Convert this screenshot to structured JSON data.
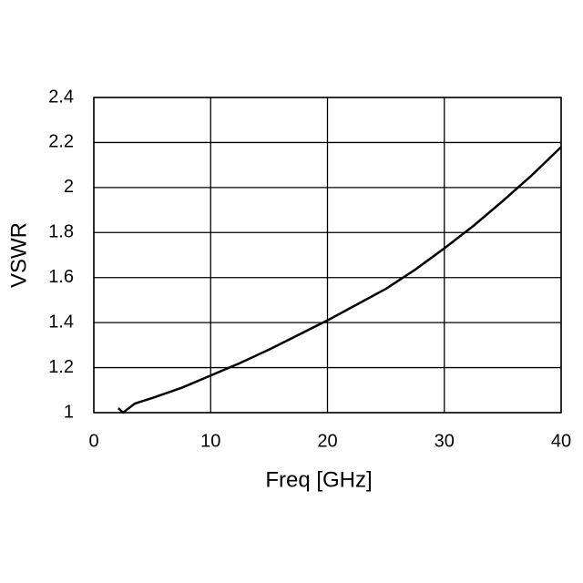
{
  "chart_data": {
    "type": "line",
    "x_label": "Freq [GHz]",
    "y_label": "VSWR",
    "x": [
      2.1,
      2.5,
      3,
      3.5,
      5,
      7.5,
      10,
      12.5,
      15,
      17.5,
      20,
      22.5,
      25,
      27.5,
      30,
      32.5,
      35,
      37.5,
      40
    ],
    "series": [
      {
        "color": "#000000",
        "values": [
          1.02,
          1.0,
          1.02,
          1.04,
          1.065,
          1.11,
          1.165,
          1.22,
          1.28,
          1.345,
          1.41,
          1.48,
          1.55,
          1.635,
          1.73,
          1.83,
          1.94,
          2.055,
          2.18
        ]
      }
    ],
    "xlim": [
      0,
      40
    ],
    "xticks": [
      0,
      10,
      20,
      30,
      40
    ],
    "ylim": [
      1,
      2.4
    ],
    "yticks": [
      1,
      1.2,
      1.4,
      1.6,
      1.8,
      2,
      2.2,
      2.4
    ],
    "grid": true
  }
}
